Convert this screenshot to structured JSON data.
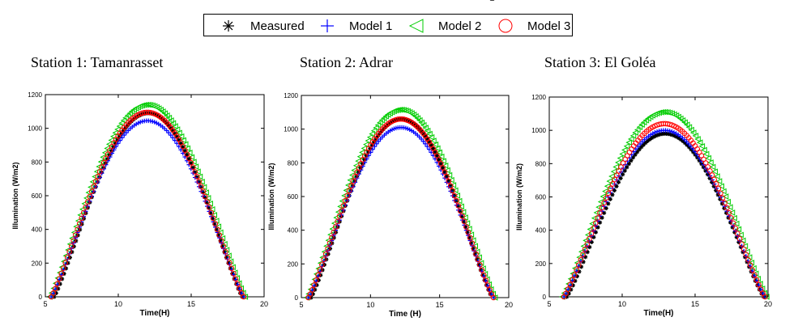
{
  "legend": {
    "items": [
      {
        "label": "Measured",
        "marker": "asterisk",
        "color": "#000000"
      },
      {
        "label": "Model 1",
        "marker": "plus",
        "color": "#0000ff"
      },
      {
        "label": "Model 2",
        "marker": "triangle-left",
        "color": "#00cc00"
      },
      {
        "label": "Model 3",
        "marker": "circle",
        "color": "#ff0000"
      }
    ]
  },
  "stations": [
    {
      "title": "Station 1: Tamanrasset"
    },
    {
      "title": "Station 2: Adrar"
    },
    {
      "title": "Station 3: El Goléa"
    }
  ],
  "chart_data": [
    {
      "type": "scatter",
      "title": "Station 1: Tamanrasset",
      "xlabel": "Time(H)",
      "ylabel": "Illumination (W/m2)",
      "xlim": [
        5,
        20
      ],
      "ylim": [
        0,
        1200
      ],
      "xticks": [
        5,
        10,
        15,
        20
      ],
      "yticks": [
        0,
        200,
        400,
        600,
        800,
        1000,
        1200
      ],
      "grid": false,
      "series": [
        {
          "name": "Measured",
          "t_start": 5.6,
          "t_end": 18.5,
          "peak": 1090,
          "color": "#000000",
          "marker": "asterisk"
        },
        {
          "name": "Model 1",
          "t_start": 5.4,
          "t_end": 18.6,
          "peak": 1045,
          "color": "#0000ff",
          "marker": "plus"
        },
        {
          "name": "Model 2",
          "t_start": 5.3,
          "t_end": 18.7,
          "peak": 1140,
          "color": "#00cc00",
          "marker": "triangle-left"
        },
        {
          "name": "Model 3",
          "t_start": 5.4,
          "t_end": 18.6,
          "peak": 1095,
          "color": "#ff0000",
          "marker": "circle"
        }
      ]
    },
    {
      "type": "scatter",
      "title": "Station 2: Adrar",
      "xlabel": "Time (H)",
      "ylabel": "Illumination (W/m2)",
      "xlim": [
        5,
        20
      ],
      "ylim": [
        0,
        1200
      ],
      "xticks": [
        5,
        10,
        15,
        20
      ],
      "yticks": [
        0,
        200,
        400,
        600,
        800,
        1000,
        1200
      ],
      "grid": false,
      "series": [
        {
          "name": "Measured",
          "t_start": 5.7,
          "t_end": 18.8,
          "peak": 1060,
          "color": "#000000",
          "marker": "asterisk"
        },
        {
          "name": "Model 1",
          "t_start": 5.5,
          "t_end": 18.9,
          "peak": 1010,
          "color": "#0000ff",
          "marker": "plus"
        },
        {
          "name": "Model 2",
          "t_start": 5.4,
          "t_end": 19.0,
          "peak": 1115,
          "color": "#00cc00",
          "marker": "triangle-left"
        },
        {
          "name": "Model 3",
          "t_start": 5.5,
          "t_end": 18.9,
          "peak": 1060,
          "color": "#ff0000",
          "marker": "circle"
        }
      ]
    },
    {
      "type": "scatter",
      "title": "Station 3: El Goléa",
      "xlabel": "Time(H)",
      "ylabel": "Illumination (W/m2)",
      "xlim": [
        5,
        20
      ],
      "ylim": [
        0,
        1200
      ],
      "xticks": [
        5,
        10,
        15,
        20
      ],
      "yticks": [
        0,
        200,
        400,
        600,
        800,
        1000,
        1200
      ],
      "grid": false,
      "series": [
        {
          "name": "Measured",
          "t_start": 6.2,
          "t_end": 19.7,
          "peak": 980,
          "color": "#000000",
          "marker": "asterisk"
        },
        {
          "name": "Model 1",
          "t_start": 6.0,
          "t_end": 19.8,
          "peak": 1000,
          "color": "#0000ff",
          "marker": "plus"
        },
        {
          "name": "Model 2",
          "t_start": 5.9,
          "t_end": 19.9,
          "peak": 1110,
          "color": "#00cc00",
          "marker": "triangle-left"
        },
        {
          "name": "Model 3",
          "t_start": 6.0,
          "t_end": 19.8,
          "peak": 1040,
          "color": "#ff0000",
          "marker": "circle"
        }
      ]
    }
  ]
}
